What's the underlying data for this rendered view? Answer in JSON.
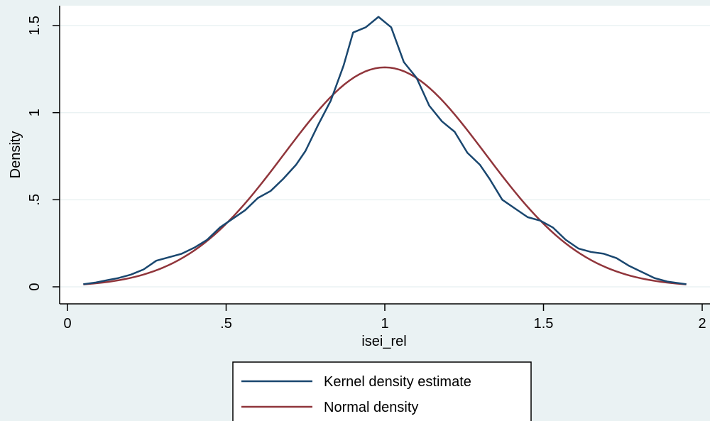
{
  "chart_data": {
    "type": "line",
    "title": "",
    "xlabel": "isei_rel",
    "ylabel": "Density",
    "xlim": [
      0,
      2
    ],
    "ylim": [
      0,
      1.6
    ],
    "grid": true,
    "legend_position": "bottom-center",
    "xticks": [
      {
        "value": 0,
        "label": "0"
      },
      {
        "value": 0.5,
        "label": ".5"
      },
      {
        "value": 1,
        "label": "1"
      },
      {
        "value": 1.5,
        "label": "1.5"
      },
      {
        "value": 2,
        "label": "2"
      }
    ],
    "yticks": [
      {
        "value": 0,
        "label": "0"
      },
      {
        "value": 0.5,
        "label": ".5"
      },
      {
        "value": 1,
        "label": "1"
      },
      {
        "value": 1.5,
        "label": "1.5"
      }
    ],
    "series": [
      {
        "name": "Kernel density estimate",
        "color": "#1a476f",
        "x": [
          0.05,
          0.09,
          0.13,
          0.16,
          0.2,
          0.24,
          0.28,
          0.32,
          0.36,
          0.4,
          0.44,
          0.48,
          0.52,
          0.56,
          0.6,
          0.64,
          0.68,
          0.72,
          0.75,
          0.79,
          0.83,
          0.87,
          0.9,
          0.94,
          0.98,
          1.02,
          1.06,
          1.1,
          1.14,
          1.18,
          1.22,
          1.26,
          1.3,
          1.33,
          1.37,
          1.41,
          1.45,
          1.49,
          1.53,
          1.57,
          1.61,
          1.65,
          1.69,
          1.73,
          1.77,
          1.81,
          1.85,
          1.89,
          1.95
        ],
        "y": [
          0.015,
          0.025,
          0.04,
          0.05,
          0.07,
          0.1,
          0.15,
          0.17,
          0.19,
          0.225,
          0.27,
          0.34,
          0.39,
          0.44,
          0.51,
          0.55,
          0.62,
          0.7,
          0.78,
          0.93,
          1.07,
          1.27,
          1.46,
          1.49,
          1.55,
          1.49,
          1.29,
          1.2,
          1.04,
          0.95,
          0.89,
          0.77,
          0.7,
          0.62,
          0.5,
          0.45,
          0.4,
          0.38,
          0.34,
          0.27,
          0.22,
          0.2,
          0.19,
          0.165,
          0.12,
          0.085,
          0.05,
          0.03,
          0.015
        ]
      },
      {
        "name": "Normal density",
        "color": "#90353b",
        "mean": 1.0,
        "sd": 0.3166,
        "x_start": 0.05,
        "x_end": 1.95
      }
    ]
  }
}
